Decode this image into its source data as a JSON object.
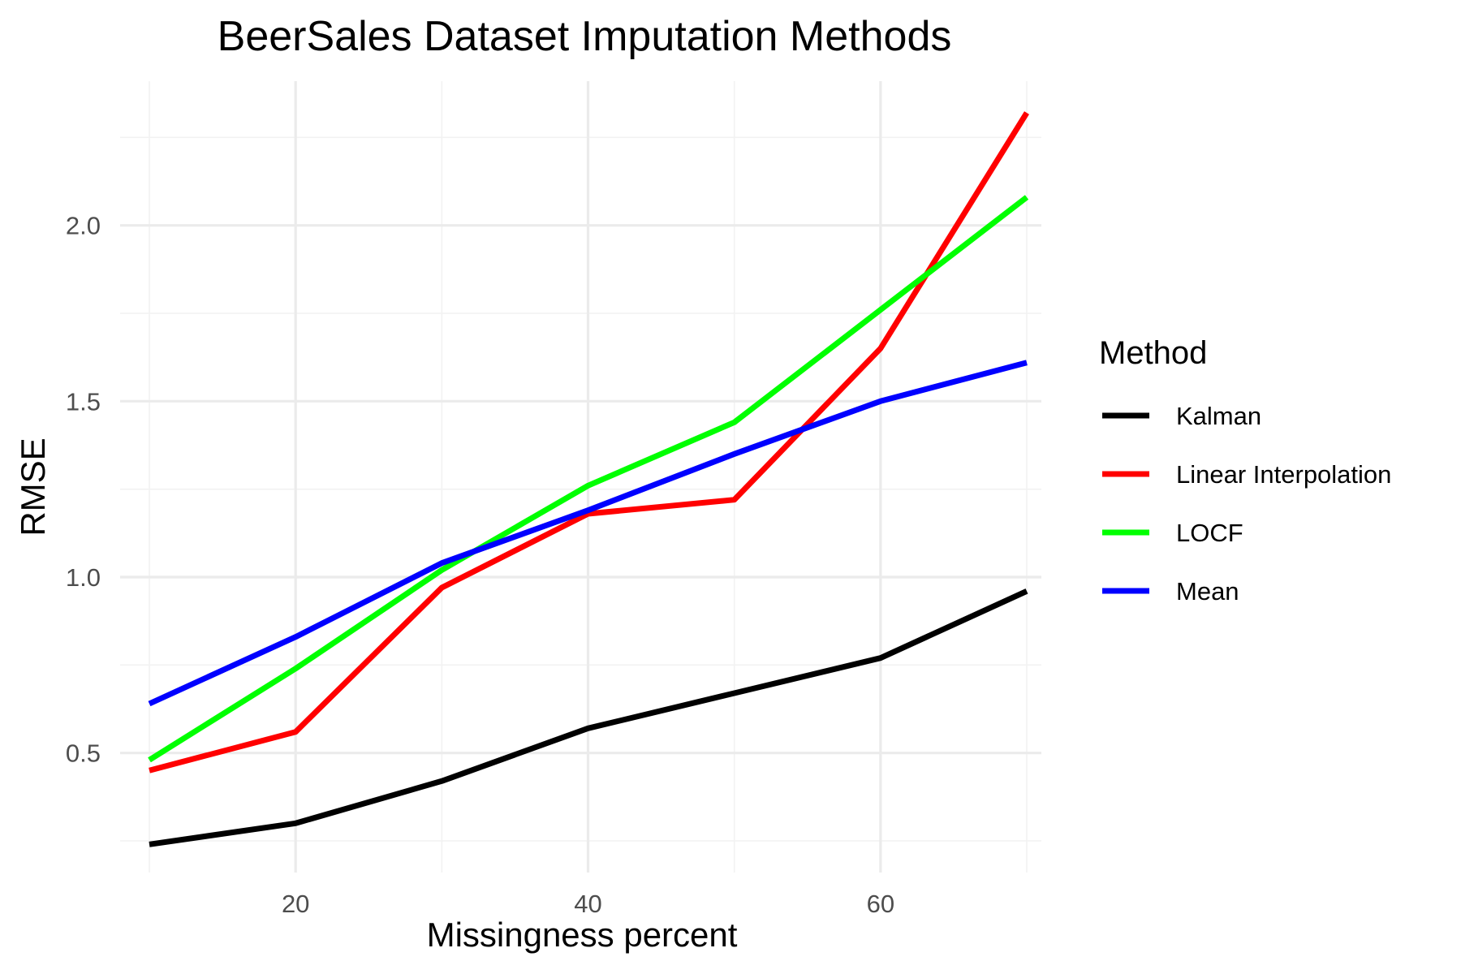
{
  "chart_data": {
    "type": "line",
    "title": "BeerSales Dataset Imputation Methods",
    "xlabel": "Missingness percent",
    "ylabel": "RMSE",
    "x": [
      10,
      20,
      30,
      40,
      50,
      60,
      70
    ],
    "xlim": [
      8,
      71
    ],
    "ylim": [
      0.16,
      2.41
    ],
    "x_ticks": [
      20,
      40,
      60
    ],
    "y_ticks": [
      0.5,
      1.0,
      1.5,
      2.0
    ],
    "x_tick_labels": [
      "20",
      "40",
      "60"
    ],
    "y_tick_labels": [
      "0.5",
      "1.0",
      "1.5",
      "2.0"
    ],
    "grid": true,
    "legend": {
      "title": "Method",
      "position": "right"
    },
    "series": [
      {
        "name": "Kalman",
        "color": "#000000",
        "values": [
          0.24,
          0.3,
          0.42,
          0.57,
          0.67,
          0.77,
          0.96
        ]
      },
      {
        "name": "Linear Interpolation",
        "color": "#ff0000",
        "values": [
          0.45,
          0.56,
          0.97,
          1.18,
          1.22,
          1.65,
          2.32
        ]
      },
      {
        "name": "LOCF",
        "color": "#00ff00",
        "values": [
          0.48,
          0.74,
          1.02,
          1.26,
          1.44,
          1.76,
          2.08
        ]
      },
      {
        "name": "Mean",
        "color": "#0000ff",
        "values": [
          0.64,
          0.83,
          1.04,
          1.19,
          1.35,
          1.5,
          1.61
        ]
      }
    ]
  }
}
